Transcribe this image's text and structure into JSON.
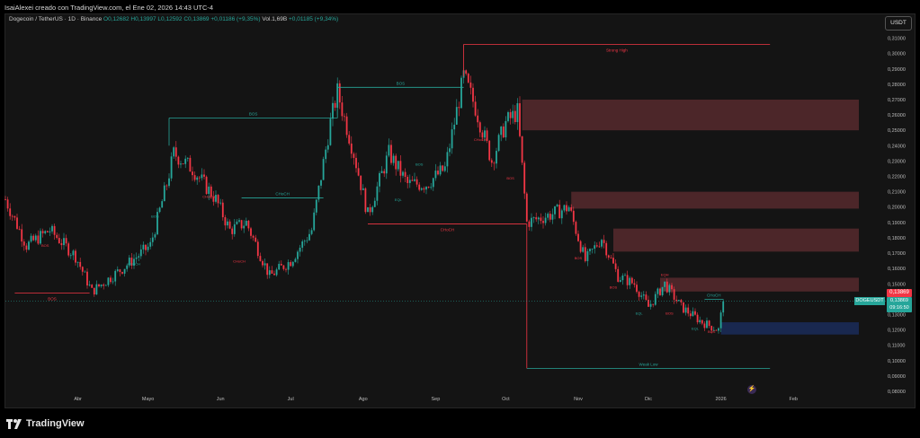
{
  "caption": "IsaiAlexei creado con TradingView.com, el Ene 02, 2026 14:43 UTC-4",
  "symbol": {
    "name": "Dogecoin / TetherUS · 1D · Binance",
    "open": "O0,12682",
    "high": "H0,13997",
    "low": "L0,12592",
    "close": "C0,13869",
    "change": "+0,01186 (+9,35%)",
    "volume": "Vol.1,69B",
    "vol_change": "+0,01185 (+9,34%)"
  },
  "currency_button": "USDT",
  "brand": "TradingView",
  "price_tag": "0,13869",
  "symbol_tag": "DOGEUSDT",
  "time_tag_price": "0,13869",
  "time_tag_time": "09:16:50",
  "colors": {
    "up": "#26a69a",
    "down": "#f23645",
    "zone_supply": "#5a2a2e",
    "zone_demand": "#1a2a55",
    "background": "#141414"
  },
  "icons": [
    "tradingview-logo-icon",
    "flash-icon"
  ],
  "chart_data": {
    "type": "candlestick",
    "ylim": [
      0.08,
      0.315
    ],
    "y_ticks": [
      "0,31000",
      "0,30000",
      "0,29000",
      "0,28000",
      "0,27000",
      "0,26000",
      "0,25000",
      "0,24000",
      "0,23000",
      "0,22000",
      "0,21000",
      "0,20000",
      "0,19000",
      "0,18000",
      "0,17000",
      "0,16000",
      "0,15000",
      "0,14000",
      "0,13000",
      "0,12000",
      "0,11000",
      "0,10000",
      "0,09000",
      "0,08000"
    ],
    "y_tick_values": [
      0.31,
      0.3,
      0.29,
      0.28,
      0.27,
      0.26,
      0.25,
      0.24,
      0.23,
      0.22,
      0.21,
      0.2,
      0.19,
      0.18,
      0.17,
      0.16,
      0.15,
      0.14,
      0.13,
      0.12,
      0.11,
      0.1,
      0.09,
      0.08
    ],
    "x_labels": [
      {
        "label": "Abr",
        "date": "2025-04-01"
      },
      {
        "label": "Mayo",
        "date": "2025-05-01"
      },
      {
        "label": "Jun",
        "date": "2025-06-01"
      },
      {
        "label": "Jul",
        "date": "2025-07-01"
      },
      {
        "label": "Ago",
        "date": "2025-08-01"
      },
      {
        "label": "Sep",
        "date": "2025-09-01"
      },
      {
        "label": "Oct",
        "date": "2025-10-01"
      },
      {
        "label": "Nov",
        "date": "2025-11-01"
      },
      {
        "label": "Dic",
        "date": "2025-12-01"
      },
      {
        "label": "2026",
        "date": "2026-01-01"
      },
      {
        "label": "Feb",
        "date": "2026-02-01"
      }
    ],
    "x_range": [
      "2025-03-01",
      "2026-03-01"
    ],
    "last_price": 0.13869,
    "close_path": [
      [
        "2025-03-01",
        0.205
      ],
      [
        "2025-03-10",
        0.175
      ],
      [
        "2025-03-20",
        0.185
      ],
      [
        "2025-03-31",
        0.168
      ],
      [
        "2025-04-07",
        0.145
      ],
      [
        "2025-04-20",
        0.16
      ],
      [
        "2025-05-02",
        0.175
      ],
      [
        "2025-05-09",
        0.215
      ],
      [
        "2025-05-12",
        0.235
      ],
      [
        "2025-05-20",
        0.225
      ],
      [
        "2025-05-30",
        0.205
      ],
      [
        "2025-06-05",
        0.185
      ],
      [
        "2025-06-12",
        0.19
      ],
      [
        "2025-06-22",
        0.155
      ],
      [
        "2025-07-01",
        0.165
      ],
      [
        "2025-07-10",
        0.185
      ],
      [
        "2025-07-18",
        0.255
      ],
      [
        "2025-07-21",
        0.275
      ],
      [
        "2025-07-28",
        0.235
      ],
      [
        "2025-08-03",
        0.195
      ],
      [
        "2025-08-12",
        0.235
      ],
      [
        "2025-08-20",
        0.215
      ],
      [
        "2025-08-28",
        0.215
      ],
      [
        "2025-09-05",
        0.225
      ],
      [
        "2025-09-13",
        0.285
      ],
      [
        "2025-09-18",
        0.265
      ],
      [
        "2025-09-25",
        0.23
      ],
      [
        "2025-10-01",
        0.255
      ],
      [
        "2025-10-06",
        0.262
      ],
      [
        "2025-10-10",
        0.19
      ],
      [
        "2025-10-20",
        0.195
      ],
      [
        "2025-10-28",
        0.2
      ],
      [
        "2025-11-04",
        0.165
      ],
      [
        "2025-11-11",
        0.18
      ],
      [
        "2025-11-18",
        0.155
      ],
      [
        "2025-11-25",
        0.15
      ],
      [
        "2025-12-01",
        0.135
      ],
      [
        "2025-12-08",
        0.15
      ],
      [
        "2025-12-15",
        0.135
      ],
      [
        "2025-12-24",
        0.125
      ],
      [
        "2025-12-31",
        0.12
      ],
      [
        "2026-01-02",
        0.13869
      ]
    ],
    "zones": [
      {
        "kind": "supply",
        "from": "2025-10-08",
        "to": "2026-03-01",
        "y": [
          0.25,
          0.27
        ]
      },
      {
        "kind": "supply",
        "from": "2025-10-29",
        "to": "2026-03-01",
        "y": [
          0.199,
          0.21
        ]
      },
      {
        "kind": "supply",
        "from": "2025-11-16",
        "to": "2026-03-01",
        "y": [
          0.171,
          0.186
        ]
      },
      {
        "kind": "supply",
        "from": "2025-12-06",
        "to": "2026-03-01",
        "y": [
          0.145,
          0.154
        ]
      },
      {
        "kind": "demand",
        "from": "2026-01-01",
        "to": "2026-03-01",
        "y": [
          0.117,
          0.125
        ]
      }
    ],
    "segments": [
      {
        "color": "up",
        "x1": "2025-05-10",
        "x2": "2025-07-21",
        "y": 0.258,
        "label": "BOS"
      },
      {
        "color": "up",
        "x1": "2025-07-21",
        "x2": "2025-09-13",
        "y": 0.278,
        "label": "BOS"
      },
      {
        "color": "down",
        "x1": "2025-08-03",
        "x2": "2025-10-10",
        "y": 0.189,
        "label": "CHoCH"
      },
      {
        "color": "down",
        "x1": "2025-09-13",
        "x2": "2026-01-22",
        "y": 0.306,
        "label": "Strong High"
      },
      {
        "color": "up",
        "x1": "2025-10-10",
        "x2": "2026-01-22",
        "y": 0.095,
        "label": "Weak Low"
      },
      {
        "color": "down",
        "x1": "2025-03-05",
        "x2": "2025-04-06",
        "y": 0.144,
        "label": "BOS"
      },
      {
        "color": "up",
        "x1": "2025-06-10",
        "x2": "2025-07-15",
        "y": 0.206,
        "label": "CHoCH"
      },
      {
        "color": "up",
        "x1": "2025-12-25",
        "x2": "2026-01-02",
        "y": 0.14,
        "label": "CHoCH"
      }
    ],
    "small_labels": [
      {
        "text": "BOS",
        "date": "2025-03-18",
        "y": 0.174,
        "color": "down"
      },
      {
        "text": "CHoCH",
        "date": "2025-04-25",
        "y": 0.162,
        "color": "up"
      },
      {
        "text": "BOS",
        "date": "2025-05-04",
        "y": 0.193,
        "color": "up"
      },
      {
        "text": "CHoCH",
        "date": "2025-05-27",
        "y": 0.206,
        "color": "down"
      },
      {
        "text": "CHoCH",
        "date": "2025-06-09",
        "y": 0.164,
        "color": "down"
      },
      {
        "text": "BOS",
        "date": "2025-08-25",
        "y": 0.227,
        "color": "up"
      },
      {
        "text": "EQL",
        "date": "2025-08-16",
        "y": 0.204,
        "color": "up"
      },
      {
        "text": "CHoCH",
        "date": "2025-09-20",
        "y": 0.243,
        "color": "down"
      },
      {
        "text": "BOS",
        "date": "2025-10-03",
        "y": 0.218,
        "color": "down"
      },
      {
        "text": "BOS",
        "date": "2025-11-01",
        "y": 0.166,
        "color": "down"
      },
      {
        "text": "BOS",
        "date": "2025-11-16",
        "y": 0.147,
        "color": "down"
      },
      {
        "text": "EQH",
        "date": "2025-12-08",
        "y": 0.155,
        "color": "down"
      },
      {
        "text": "EQL",
        "date": "2025-11-27",
        "y": 0.13,
        "color": "up"
      },
      {
        "text": "BOS",
        "date": "2025-12-10",
        "y": 0.13,
        "color": "down"
      },
      {
        "text": "EQL",
        "date": "2025-12-21",
        "y": 0.12,
        "color": "up"
      },
      {
        "text": "BOS",
        "date": "2025-12-28",
        "y": 0.118,
        "color": "down"
      }
    ]
  }
}
